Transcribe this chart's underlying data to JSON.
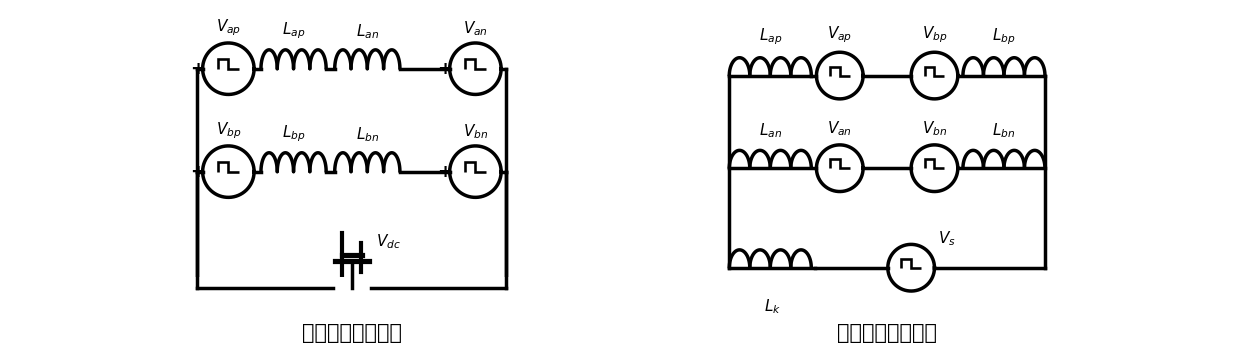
{
  "fig_width": 12.39,
  "fig_height": 3.57,
  "dpi": 100,
  "bg_color": "#ffffff",
  "line_color": "#000000",
  "line_width": 2.5,
  "title1": "共模电流等效回路",
  "title2": "差模电流等效回路",
  "title_fontsize": 15,
  "label_fontsize": 11
}
